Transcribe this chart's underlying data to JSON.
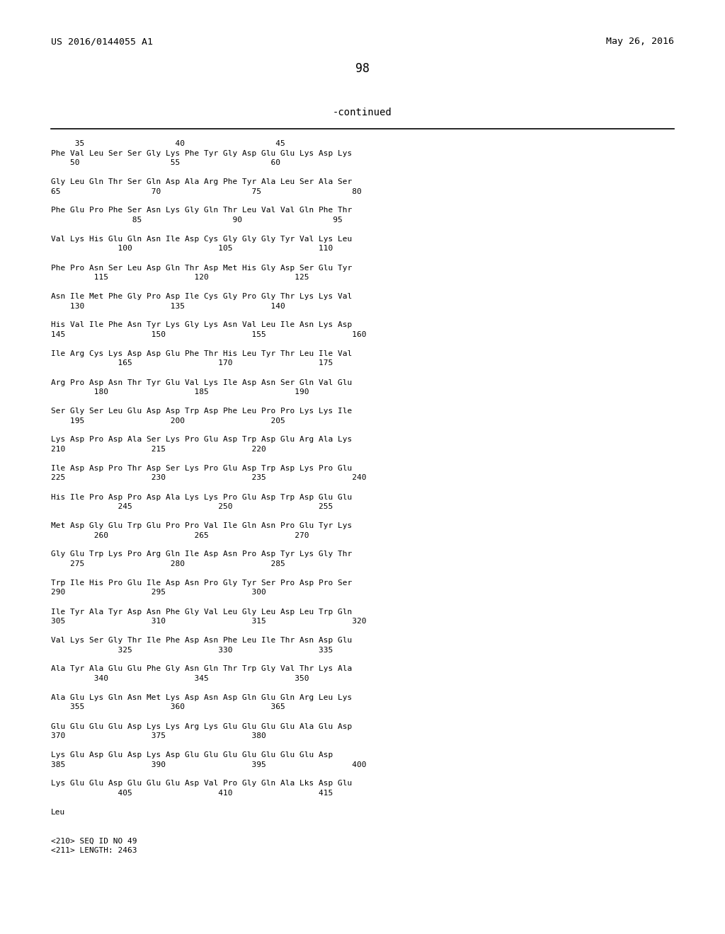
{
  "bg_color": "#ffffff",
  "header_left": "US 2016/0144055 A1",
  "header_right": "May 26, 2016",
  "page_number": "98",
  "continued_label": "-continued",
  "header_font_size": 9.5,
  "page_num_font_size": 12,
  "continued_font_size": 10,
  "body_font_size": 8.0,
  "lines": [
    "     35                   40                   45",
    "Phe Val Leu Ser Ser Gly Lys Phe Tyr Gly Asp Glu Glu Lys Asp Lys",
    "    50                   55                   60",
    "",
    "Gly Leu Gln Thr Ser Gln Asp Ala Arg Phe Tyr Ala Leu Ser Ala Ser",
    "65                   70                   75                   80",
    "",
    "Phe Glu Pro Phe Ser Asn Lys Gly Gln Thr Leu Val Val Gln Phe Thr",
    "                 85                   90                   95",
    "",
    "Val Lys His Glu Gln Asn Ile Asp Cys Gly Gly Gly Tyr Val Lys Leu",
    "              100                  105                  110",
    "",
    "Phe Pro Asn Ser Leu Asp Gln Thr Asp Met His Gly Asp Ser Glu Tyr",
    "         115                  120                  125",
    "",
    "Asn Ile Met Phe Gly Pro Asp Ile Cys Gly Pro Gly Thr Lys Lys Val",
    "    130                  135                  140",
    "",
    "His Val Ile Phe Asn Tyr Lys Gly Lys Asn Val Leu Ile Asn Lys Asp",
    "145                  150                  155                  160",
    "",
    "Ile Arg Cys Lys Asp Asp Glu Phe Thr His Leu Tyr Thr Leu Ile Val",
    "              165                  170                  175",
    "",
    "Arg Pro Asp Asn Thr Tyr Glu Val Lys Ile Asp Asn Ser Gln Val Glu",
    "         180                  185                  190",
    "",
    "Ser Gly Ser Leu Glu Asp Asp Trp Asp Phe Leu Pro Pro Lys Lys Ile",
    "    195                  200                  205",
    "",
    "Lys Asp Pro Asp Ala Ser Lys Pro Glu Asp Trp Asp Glu Arg Ala Lys",
    "210                  215                  220",
    "",
    "Ile Asp Asp Pro Thr Asp Ser Lys Pro Glu Asp Trp Asp Lys Pro Glu",
    "225                  230                  235                  240",
    "",
    "His Ile Pro Asp Pro Asp Ala Lys Lys Pro Glu Asp Trp Asp Glu Glu",
    "              245                  250                  255",
    "",
    "Met Asp Gly Glu Trp Glu Pro Pro Val Ile Gln Asn Pro Glu Tyr Lys",
    "         260                  265                  270",
    "",
    "Gly Glu Trp Lys Pro Arg Gln Ile Asp Asn Pro Asp Tyr Lys Gly Thr",
    "    275                  280                  285",
    "",
    "Trp Ile His Pro Glu Ile Asp Asn Pro Gly Tyr Ser Pro Asp Pro Ser",
    "290                  295                  300",
    "",
    "Ile Tyr Ala Tyr Asp Asn Phe Gly Val Leu Gly Leu Asp Leu Trp Gln",
    "305                  310                  315                  320",
    "",
    "Val Lys Ser Gly Thr Ile Phe Asp Asn Phe Leu Ile Thr Asn Asp Glu",
    "              325                  330                  335",
    "",
    "Ala Tyr Ala Glu Glu Phe Gly Asn Gln Thr Trp Gly Val Thr Lys Ala",
    "         340                  345                  350",
    "",
    "Ala Glu Lys Gln Asn Met Lys Asp Asn Asp Gln Glu Gln Arg Leu Lys",
    "    355                  360                  365",
    "",
    "Glu Glu Glu Glu Asp Lys Lys Arg Lys Glu Glu Glu Glu Ala Glu Asp",
    "370                  375                  380",
    "",
    "Lys Glu Asp Glu Asp Lys Asp Glu Glu Glu Glu Glu Glu Glu Asp",
    "385                  390                  395                  400",
    "",
    "Lys Glu Glu Asp Glu Glu Glu Asp Val Pro Gly Gln Ala Lks Asp Glu",
    "              405                  410                  415",
    "",
    "Leu"
  ],
  "footer_lines": [
    "<210> SEQ ID NO 49",
    "<211> LENGTH: 2463"
  ]
}
